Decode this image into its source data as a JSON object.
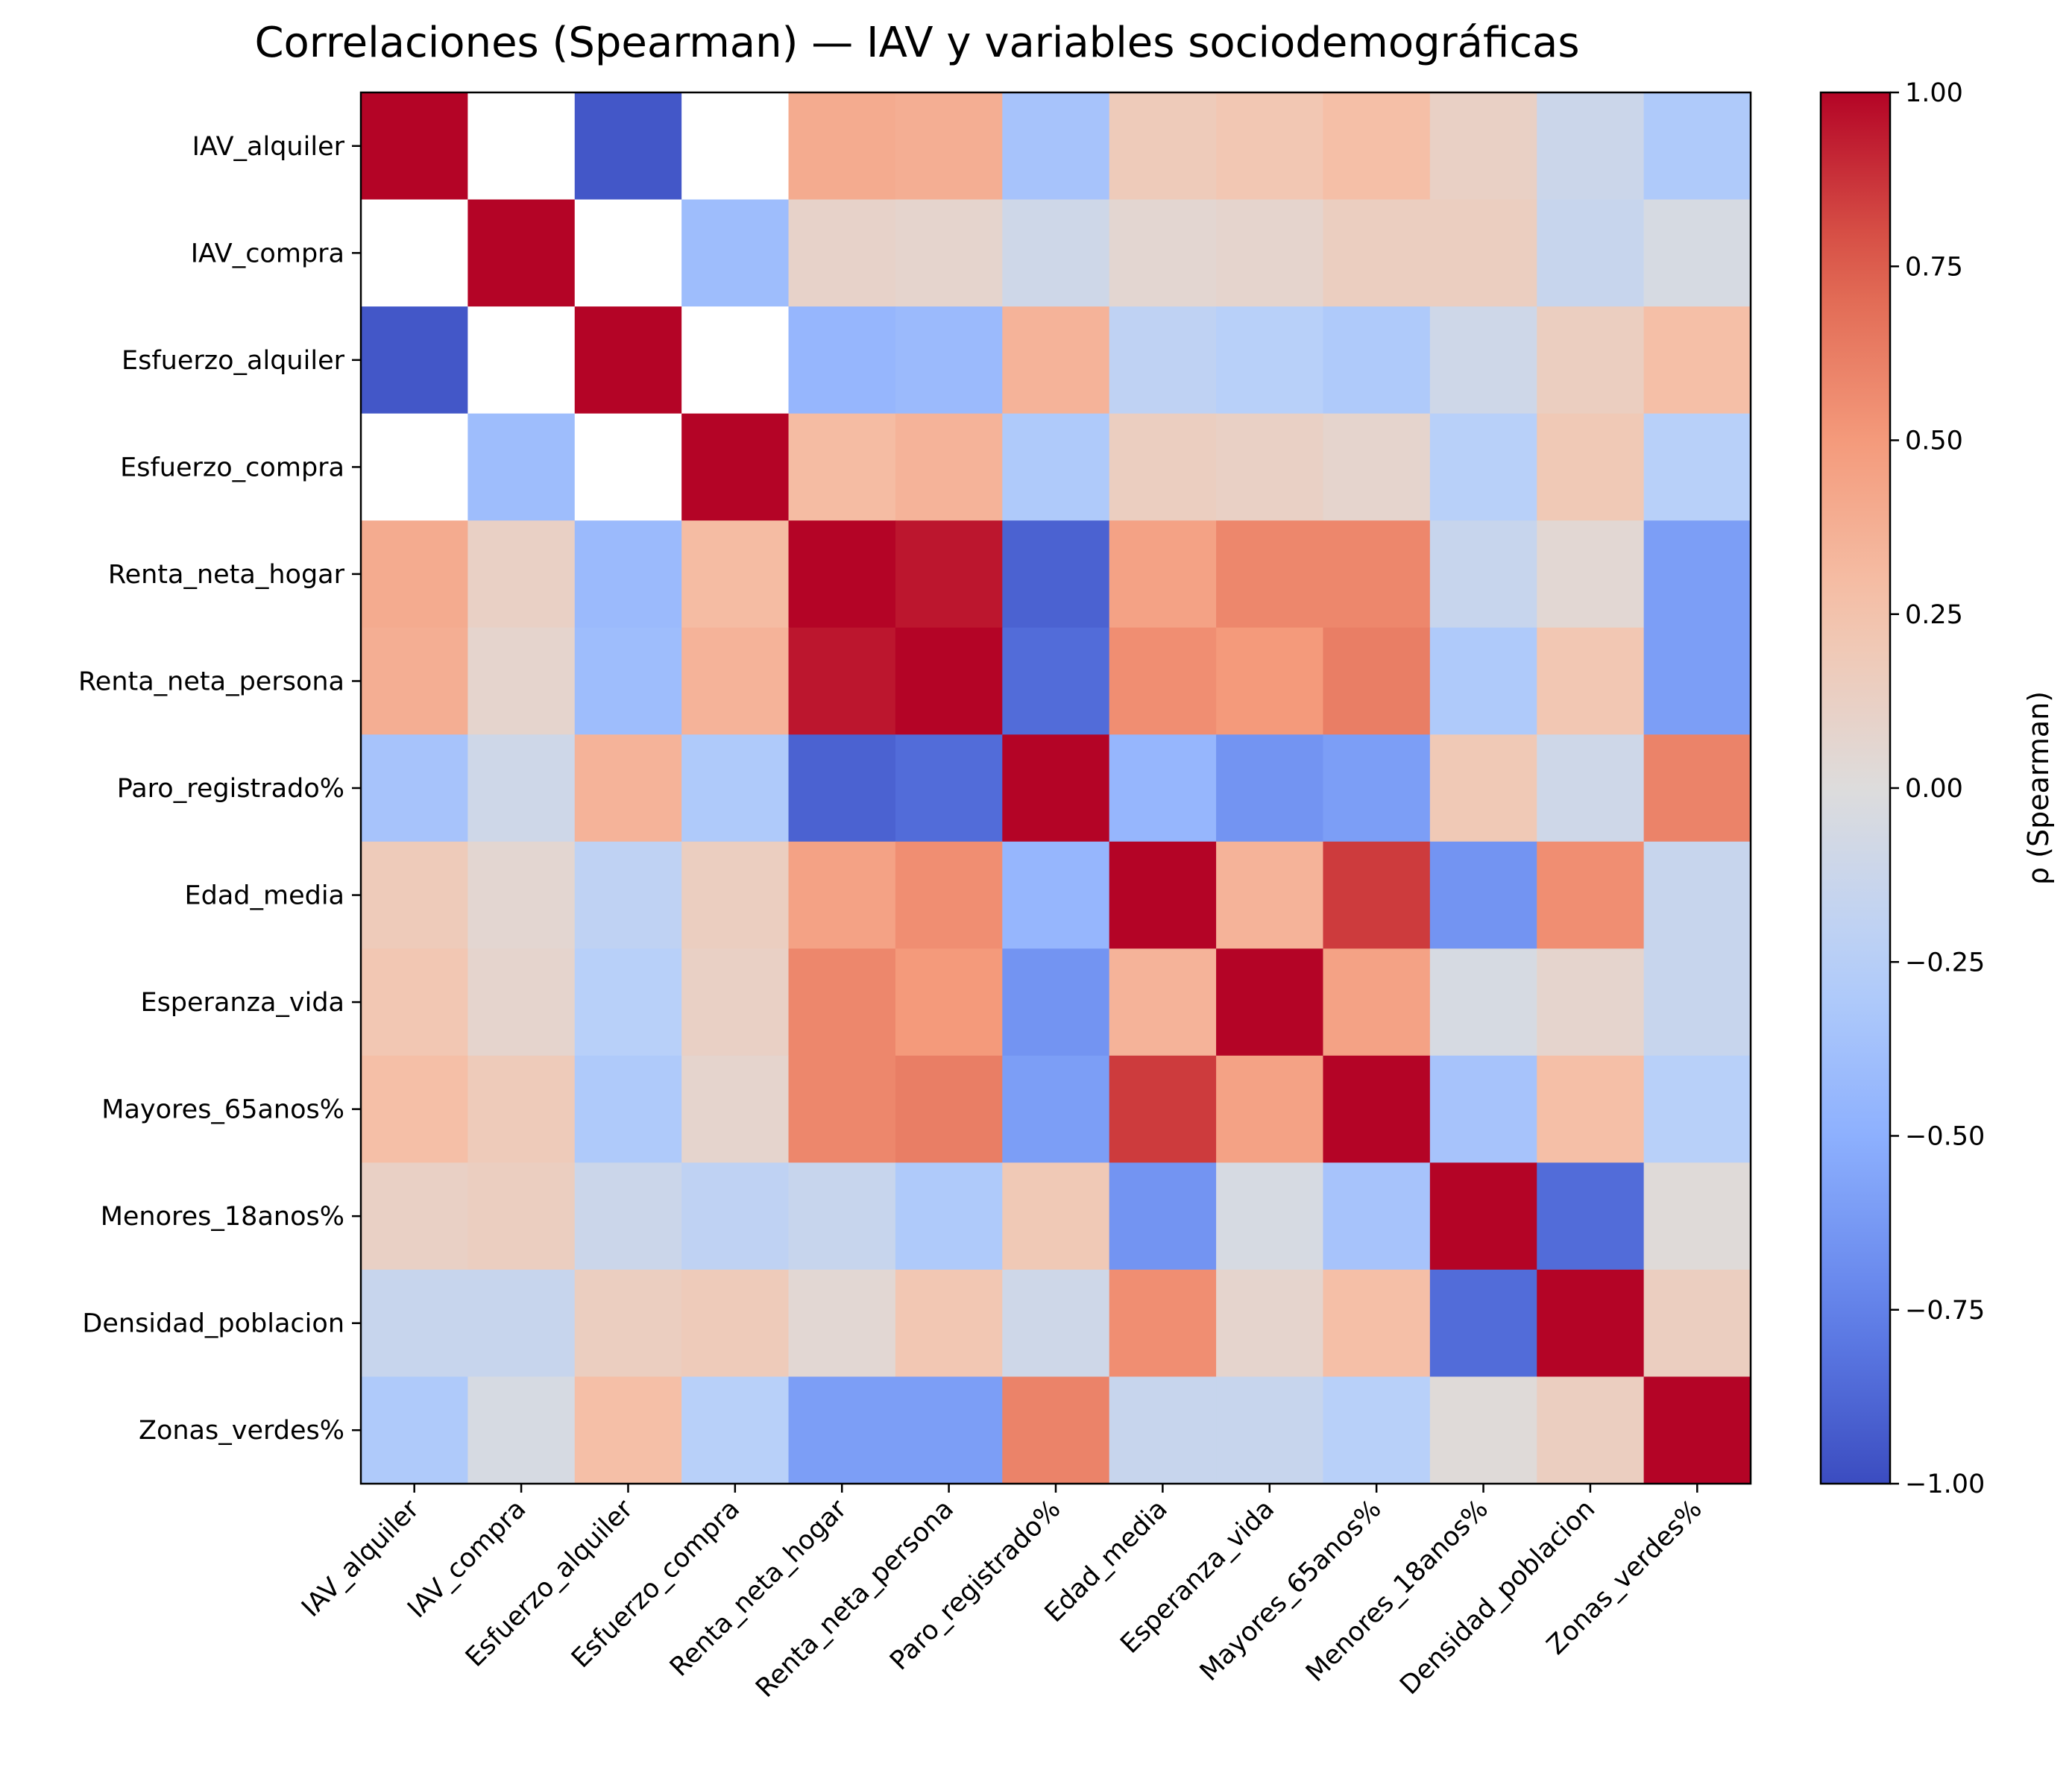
{
  "chart_data": {
    "type": "heatmap",
    "title": "Correlaciones (Spearman) — IAV y variables sociodemográficas",
    "x_labels": [
      "IAV_alquiler",
      "IAV_compra",
      "Esfuerzo_alquiler",
      "Esfuerzo_compra",
      "Renta_neta_hogar",
      "Renta_neta_persona",
      "Paro_registrado%",
      "Edad_media",
      "Esperanza_vida",
      "Mayores_65anos%",
      "Menores_18anos%",
      "Densidad_poblacion",
      "Zonas_verdes%"
    ],
    "y_labels": [
      "IAV_alquiler",
      "IAV_compra",
      "Esfuerzo_alquiler",
      "Esfuerzo_compra",
      "Renta_neta_hogar",
      "Renta_neta_persona",
      "Paro_registrado%",
      "Edad_media",
      "Esperanza_vida",
      "Mayores_65anos%",
      "Menores_18anos%",
      "Densidad_poblacion",
      "Zonas_verdes%"
    ],
    "values": [
      [
        1.0,
        null,
        -0.95,
        null,
        0.4,
        0.38,
        -0.35,
        0.18,
        0.22,
        0.28,
        0.12,
        -0.12,
        -0.3
      ],
      [
        null,
        1.0,
        null,
        -0.4,
        0.1,
        0.08,
        -0.1,
        0.06,
        0.08,
        0.15,
        0.15,
        -0.15,
        -0.05
      ],
      [
        -0.95,
        null,
        1.0,
        null,
        -0.45,
        -0.42,
        0.35,
        -0.2,
        -0.25,
        -0.3,
        -0.1,
        0.15,
        0.28
      ],
      [
        null,
        -0.4,
        null,
        1.0,
        0.3,
        0.35,
        -0.3,
        0.15,
        0.12,
        0.08,
        -0.25,
        0.2,
        -0.25
      ],
      [
        0.4,
        0.12,
        -0.42,
        0.3,
        1.0,
        0.95,
        -0.9,
        0.45,
        0.58,
        0.58,
        -0.15,
        0.05,
        -0.6
      ],
      [
        0.38,
        0.08,
        -0.4,
        0.35,
        0.95,
        1.0,
        -0.85,
        0.55,
        0.5,
        0.62,
        -0.3,
        0.22,
        -0.6
      ],
      [
        -0.35,
        -0.1,
        0.35,
        -0.3,
        -0.9,
        -0.85,
        1.0,
        -0.45,
        -0.65,
        -0.6,
        0.2,
        -0.1,
        0.6
      ],
      [
        0.18,
        0.06,
        -0.2,
        0.15,
        0.45,
        0.55,
        -0.45,
        1.0,
        0.35,
        0.85,
        -0.65,
        0.55,
        -0.15
      ],
      [
        0.22,
        0.08,
        -0.25,
        0.12,
        0.58,
        0.5,
        -0.65,
        0.35,
        1.0,
        0.45,
        -0.05,
        0.08,
        -0.15
      ],
      [
        0.28,
        0.18,
        -0.3,
        0.08,
        0.58,
        0.62,
        -0.6,
        0.85,
        0.45,
        1.0,
        -0.35,
        0.28,
        -0.25
      ],
      [
        0.12,
        0.15,
        -0.12,
        -0.2,
        -0.15,
        -0.3,
        0.2,
        -0.65,
        -0.05,
        -0.35,
        1.0,
        -0.85,
        0.02
      ],
      [
        -0.15,
        -0.15,
        0.15,
        0.18,
        0.05,
        0.22,
        -0.1,
        0.55,
        0.08,
        0.28,
        -0.85,
        1.0,
        0.15
      ],
      [
        -0.3,
        -0.05,
        0.28,
        -0.25,
        -0.6,
        -0.6,
        0.6,
        -0.15,
        -0.15,
        -0.25,
        0.02,
        0.15,
        1.0
      ]
    ],
    "vmin": -1.0,
    "vmax": 1.0,
    "colormap": "coolwarm",
    "missing_color": "#ffffff",
    "colorbar": {
      "label": "ρ (Spearman)",
      "ticks": [
        1.0,
        0.75,
        0.5,
        0.25,
        0.0,
        -0.25,
        -0.5,
        -0.75,
        -1.0
      ],
      "tick_labels": [
        "1.00",
        "0.75",
        "0.50",
        "0.25",
        "0.00",
        "−0.25",
        "−0.50",
        "−0.75",
        "−1.00"
      ]
    },
    "grid": false
  }
}
